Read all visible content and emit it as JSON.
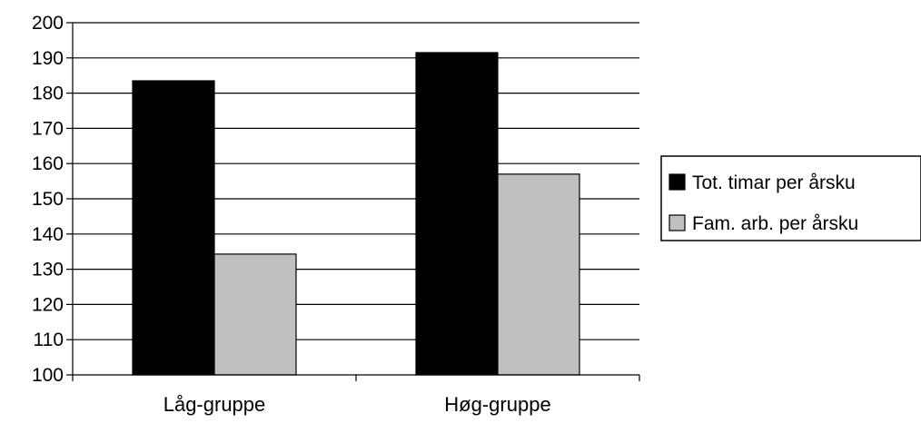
{
  "chart_data": {
    "type": "bar",
    "categories": [
      "Låg-gruppe",
      "Høg-gruppe"
    ],
    "series": [
      {
        "name": "Tot. timar per årsku",
        "values": [
          183.5,
          191.5
        ],
        "color": "#000000"
      },
      {
        "name": "Fam. arb. per årsku",
        "values": [
          134.3,
          157.0
        ],
        "color": "#c0c0c0"
      }
    ],
    "ylim": [
      100,
      200
    ],
    "yticks": [
      100,
      110,
      120,
      130,
      140,
      150,
      160,
      170,
      180,
      190,
      200
    ],
    "grid": true,
    "legend_position": "right"
  }
}
